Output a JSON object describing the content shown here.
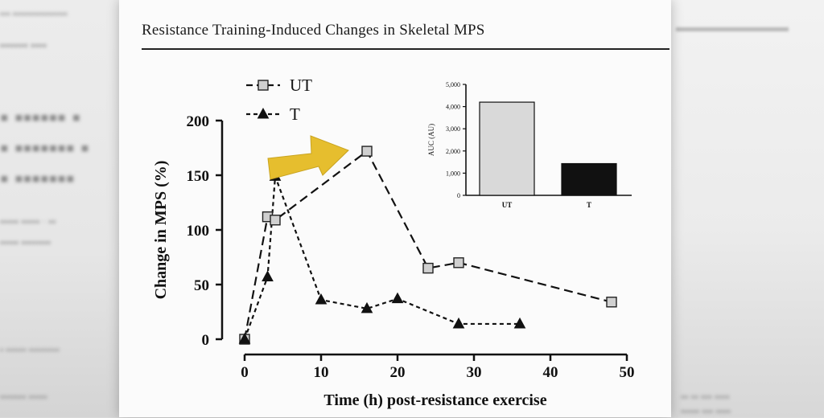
{
  "page": {
    "running_head": "Resistance Training-Induced Changes in Skeletal MPS"
  },
  "colors": {
    "ut_bar": "#d9d9d9",
    "t_bar": "#111111",
    "arrow": "#e6be2e",
    "ut_marker": "#d0d0d0"
  },
  "chart_data": [
    {
      "type": "line",
      "xlabel": "Time (h) post-resistance exercise",
      "ylabel": "Change in MPS (%)",
      "xlim": [
        0,
        50
      ],
      "ylim": [
        0,
        200
      ],
      "xticks": [
        0,
        10,
        20,
        30,
        40,
        50
      ],
      "yticks": [
        0,
        50,
        100,
        150,
        200
      ],
      "grid": false,
      "legend": "top-left",
      "series": [
        {
          "name": "UT",
          "marker": "square",
          "x": [
            0,
            3,
            4,
            16,
            24,
            28,
            48
          ],
          "y": [
            0,
            112,
            109,
            172,
            65,
            70,
            34
          ]
        },
        {
          "name": "T",
          "marker": "triangle",
          "x": [
            0,
            3,
            4,
            10,
            16,
            20,
            28,
            36
          ],
          "y": [
            0,
            57,
            149,
            36,
            28,
            37,
            14,
            14
          ]
        }
      ],
      "annotations": [
        {
          "type": "arrow",
          "direction": "right"
        }
      ]
    },
    {
      "type": "bar",
      "ylabel": "AUC (AU)",
      "categories": [
        "UT",
        "T"
      ],
      "values": [
        4200,
        1430
      ],
      "ylim": [
        0,
        5000
      ],
      "yticks": [
        0,
        1000,
        2000,
        3000,
        4000,
        5000
      ],
      "ytick_labels": [
        "0",
        "1,000",
        "2,000",
        "3,000",
        "4,000",
        "5,000"
      ],
      "grid": false
    }
  ]
}
